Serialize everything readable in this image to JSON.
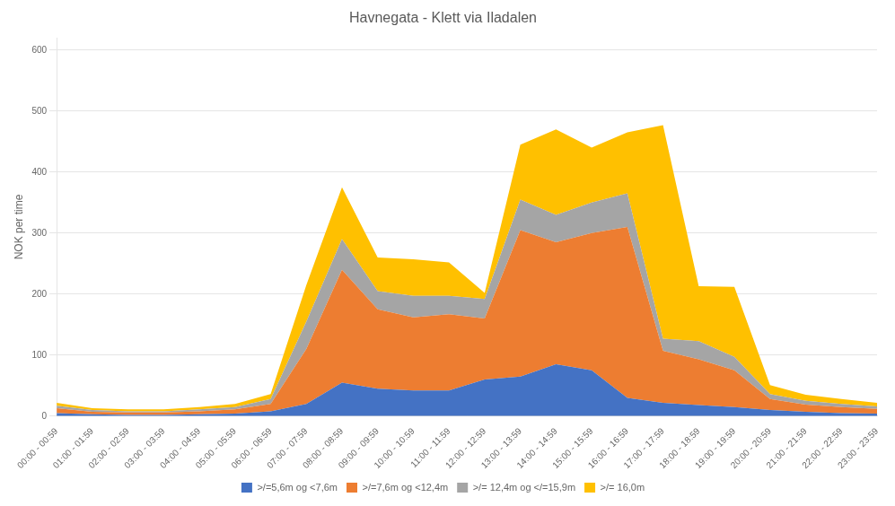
{
  "chart_data": {
    "type": "area",
    "title": "Havnegata - Klett via Iladalen",
    "ylabel": "NOK per time",
    "categories": [
      "00:00 - 00:59",
      "01:00 - 01:59",
      "02:00 - 02:59",
      "03:00 - 03:59",
      "04:00 - 04:59",
      "05:00 - 05:59",
      "06:00 - 06:59",
      "07:00 - 07:59",
      "08:00 - 08:59",
      "09:00 - 09:59",
      "10:00 - 10:59",
      "11:00 - 11:59",
      "12:00 - 12:59",
      "13:00 - 13:59",
      "14:00 - 14:59",
      "15:00 - 15:59",
      "16:00 - 16:59",
      "17:00 - 17:59",
      "18:00 - 18:59",
      "19:00 - 19:59",
      "20:00 - 20:59",
      "21:00 - 21:59",
      "22:00 - 22:59",
      "23:00 - 23:59"
    ],
    "series": [
      {
        "name": ">/=5,6m og <7,6m",
        "color": "#4472C4",
        "values": [
          5,
          3,
          2,
          2,
          3,
          4,
          8,
          20,
          55,
          45,
          42,
          42,
          60,
          65,
          85,
          75,
          30,
          22,
          18,
          15,
          10,
          7,
          5,
          4
        ]
      },
      {
        "name": ">/=7,6m og <12,4m",
        "color": "#ED7D31",
        "values": [
          8,
          4,
          4,
          4,
          5,
          7,
          12,
          90,
          185,
          130,
          120,
          125,
          100,
          240,
          200,
          225,
          280,
          85,
          75,
          60,
          18,
          12,
          10,
          8
        ]
      },
      {
        "name": ">/= 12,4m og </=15,9m",
        "color": "#A5A5A5",
        "values": [
          4,
          3,
          2,
          2,
          3,
          4,
          8,
          45,
          50,
          30,
          35,
          30,
          32,
          50,
          45,
          50,
          55,
          20,
          30,
          22,
          8,
          6,
          5,
          4
        ]
      },
      {
        "name": ">/= 16,0m",
        "color": "#FFC000",
        "values": [
          5,
          3,
          3,
          3,
          4,
          5,
          8,
          60,
          85,
          55,
          60,
          55,
          10,
          90,
          140,
          90,
          100,
          350,
          90,
          115,
          15,
          10,
          8,
          6
        ]
      }
    ],
    "ylim": [
      0,
      620
    ],
    "yticks": [
      0,
      100,
      200,
      300,
      400,
      500,
      600
    ],
    "stacked": true,
    "grid": true,
    "legend": "bottom"
  }
}
